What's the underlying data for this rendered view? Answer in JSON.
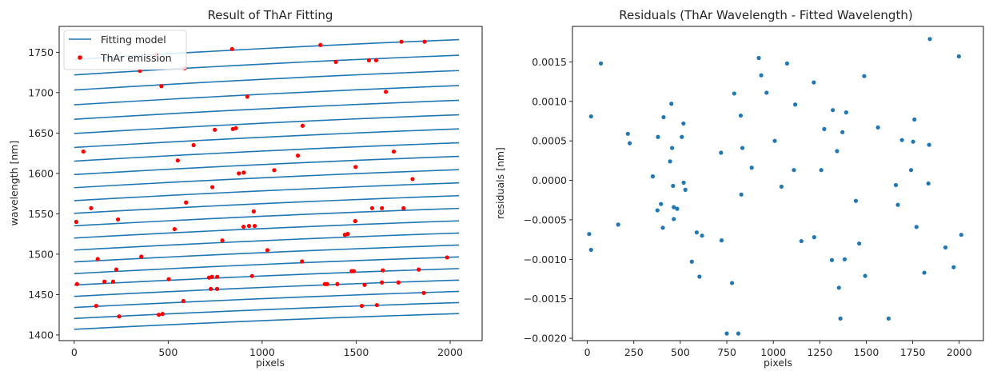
{
  "colors": {
    "model": "#1f77b4",
    "emission": "#ff0000",
    "residual": "#1f77b4"
  },
  "chart_data": [
    {
      "type": "line",
      "title": "Result of ThAr Fitting",
      "xlabel": "pixels",
      "ylabel": "wavelength [nm]",
      "xlim": [
        -80,
        2170
      ],
      "ylim": [
        1393,
        1782
      ],
      "xticks": [
        0,
        500,
        1000,
        1500,
        2000
      ],
      "xtick_labels": [
        "0",
        "500",
        "1000",
        "1500",
        "2000"
      ],
      "yticks": [
        1400,
        1450,
        1500,
        1550,
        1600,
        1650,
        1700,
        1750
      ],
      "ytick_labels": [
        "1400",
        "1450",
        "1500",
        "1550",
        "1600",
        "1650",
        "1700",
        "1750"
      ],
      "legend": {
        "position": "top-left",
        "entries": [
          "Fitting model",
          "ThAr emission"
        ]
      },
      "model_series": {
        "name": "Fitting model",
        "x_range": [
          0,
          2047
        ],
        "orders": [
          {
            "start": 1407.0,
            "end": 1426.5
          },
          {
            "start": 1420.4,
            "end": 1440.1
          },
          {
            "start": 1434.0,
            "end": 1453.9
          },
          {
            "start": 1447.8,
            "end": 1467.9
          },
          {
            "start": 1461.8,
            "end": 1482.2
          },
          {
            "start": 1476.0,
            "end": 1496.6
          },
          {
            "start": 1490.4,
            "end": 1511.3
          },
          {
            "start": 1505.1,
            "end": 1526.2
          },
          {
            "start": 1520.0,
            "end": 1541.3
          },
          {
            "start": 1535.1,
            "end": 1556.7
          },
          {
            "start": 1550.6,
            "end": 1572.4
          },
          {
            "start": 1566.3,
            "end": 1588.3
          },
          {
            "start": 1582.3,
            "end": 1604.6
          },
          {
            "start": 1598.6,
            "end": 1621.1
          },
          {
            "start": 1615.2,
            "end": 1637.9
          },
          {
            "start": 1632.1,
            "end": 1655.1
          },
          {
            "start": 1649.4,
            "end": 1672.6
          },
          {
            "start": 1667.0,
            "end": 1690.5
          },
          {
            "start": 1684.9,
            "end": 1708.7
          },
          {
            "start": 1703.2,
            "end": 1727.3
          },
          {
            "start": 1721.9,
            "end": 1746.3
          },
          {
            "start": 1741.0,
            "end": 1765.6
          }
        ]
      },
      "emission_series": {
        "name": "ThAr emission",
        "points": [
          [
            239,
            1423
          ],
          [
            450,
            1425
          ],
          [
            470,
            1426
          ],
          [
            1530,
            1436
          ],
          [
            1610,
            1437
          ],
          [
            117,
            1436
          ],
          [
            581,
            1442
          ],
          [
            1860,
            1452
          ],
          [
            727,
            1457
          ],
          [
            760,
            1457
          ],
          [
            1545,
            1462
          ],
          [
            1637,
            1465
          ],
          [
            1725,
            1465
          ],
          [
            161,
            1466
          ],
          [
            207,
            1466
          ],
          [
            503,
            1469
          ],
          [
            717,
            1471
          ],
          [
            733,
            1472
          ],
          [
            761,
            1472
          ],
          [
            946,
            1473
          ],
          [
            1334,
            1463
          ],
          [
            1346,
            1463
          ],
          [
            1400,
            1463
          ],
          [
            1476,
            1479
          ],
          [
            1487,
            1479
          ],
          [
            1642,
            1480
          ],
          [
            1833,
            1481
          ],
          [
            224,
            1481
          ],
          [
            15,
            1463
          ],
          [
            125,
            1494
          ],
          [
            357,
            1497
          ],
          [
            1212,
            1491
          ],
          [
            1984,
            1496
          ],
          [
            1028,
            1505
          ],
          [
            788,
            1517
          ],
          [
            1440,
            1524
          ],
          [
            1455,
            1525
          ],
          [
            233,
            1543
          ],
          [
            534,
            1531
          ],
          [
            901,
            1534
          ],
          [
            930,
            1535
          ],
          [
            960,
            1535
          ],
          [
            1495,
            1541
          ],
          [
            11,
            1540
          ],
          [
            90,
            1557
          ],
          [
            595,
            1564
          ],
          [
            955,
            1553
          ],
          [
            1585,
            1557
          ],
          [
            1637,
            1557
          ],
          [
            1752,
            1557
          ],
          [
            735,
            1583
          ],
          [
            1800,
            1593
          ],
          [
            1064,
            1604
          ],
          [
            1497,
            1608
          ],
          [
            551,
            1616
          ],
          [
            876,
            1600
          ],
          [
            902,
            1601
          ],
          [
            1190,
            1622
          ],
          [
            49,
            1627
          ],
          [
            1700,
            1627
          ],
          [
            635,
            1635
          ],
          [
            748,
            1654
          ],
          [
            844,
            1655
          ],
          [
            860,
            1656
          ],
          [
            1215,
            1659
          ],
          [
            921,
            1695
          ],
          [
            1658,
            1701
          ],
          [
            464,
            1708
          ],
          [
            587,
            1730
          ],
          [
            350,
            1727
          ],
          [
            1392,
            1738
          ],
          [
            1568,
            1740
          ],
          [
            1606,
            1740
          ],
          [
            840,
            1754
          ],
          [
            1310,
            1759
          ],
          [
            1741,
            1763
          ],
          [
            1864,
            1763
          ],
          [
            437,
            1747
          ]
        ]
      }
    },
    {
      "type": "scatter",
      "title": "Residuals (ThAr Wavelength - Fitted Wavelength)",
      "xlabel": "pixels",
      "ylabel": "residuals [nm]",
      "xlim": [
        -80,
        2130
      ],
      "ylim": [
        -0.00203,
        0.00195
      ],
      "xticks": [
        0,
        250,
        500,
        750,
        1000,
        1250,
        1500,
        1750,
        2000
      ],
      "xtick_labels": [
        "0",
        "250",
        "500",
        "750",
        "1000",
        "1250",
        "1500",
        "1750",
        "2000"
      ],
      "yticks": [
        -0.002,
        -0.0015,
        -0.001,
        -0.0005,
        0.0,
        0.0005,
        0.001,
        0.0015
      ],
      "ytick_labels": [
        "−0.0020",
        "−0.0015",
        "−0.0010",
        "−0.0005",
        "0.0000",
        "0.0005",
        "0.0010",
        "0.0015"
      ],
      "series": {
        "name": "residuals",
        "points": [
          [
            10,
            -0.00068
          ],
          [
            20,
            0.00081
          ],
          [
            20,
            -0.00088
          ],
          [
            73,
            0.00148
          ],
          [
            166,
            -0.00056
          ],
          [
            218,
            0.00059
          ],
          [
            228,
            0.00047
          ],
          [
            352,
            5e-05
          ],
          [
            377,
            -0.00038
          ],
          [
            380,
            0.00055
          ],
          [
            396,
            -0.0003
          ],
          [
            406,
            -0.0006
          ],
          [
            410,
            0.0008
          ],
          [
            445,
            0.00024
          ],
          [
            452,
            0.00097
          ],
          [
            456,
            0.00041
          ],
          [
            461,
            -7e-05
          ],
          [
            465,
            -0.00034
          ],
          [
            465,
            -0.00049
          ],
          [
            483,
            -0.00036
          ],
          [
            508,
            0.00055
          ],
          [
            517,
            0.00072
          ],
          [
            518,
            -3e-05
          ],
          [
            527,
            -0.00012
          ],
          [
            562,
            -0.00103
          ],
          [
            588,
            -0.00066
          ],
          [
            603,
            -0.00122
          ],
          [
            617,
            -0.0007
          ],
          [
            719,
            0.00035
          ],
          [
            722,
            -0.00076
          ],
          [
            750,
            -0.00194
          ],
          [
            778,
            -0.0013
          ],
          [
            790,
            0.0011
          ],
          [
            812,
            -0.00194
          ],
          [
            825,
            0.00082
          ],
          [
            828,
            -0.00018
          ],
          [
            834,
            0.00041
          ],
          [
            884,
            0.00016
          ],
          [
            922,
            0.00155
          ],
          [
            935,
            0.00133
          ],
          [
            964,
            0.00111
          ],
          [
            1008,
            0.0005
          ],
          [
            1044,
            -8e-05
          ],
          [
            1074,
            0.00148
          ],
          [
            1111,
            0.00013
          ],
          [
            1118,
            0.00096
          ],
          [
            1151,
            -0.00077
          ],
          [
            1218,
            0.00124
          ],
          [
            1220,
            -0.00072
          ],
          [
            1258,
            0.00013
          ],
          [
            1274,
            0.00065
          ],
          [
            1315,
            -0.00101
          ],
          [
            1320,
            0.00089
          ],
          [
            1343,
            0.00037
          ],
          [
            1353,
            -0.00136
          ],
          [
            1361,
            -0.00175
          ],
          [
            1372,
            0.00061
          ],
          [
            1384,
            -0.001
          ],
          [
            1392,
            0.00086
          ],
          [
            1444,
            -0.00026
          ],
          [
            1462,
            -0.0008
          ],
          [
            1489,
            0.00132
          ],
          [
            1494,
            -0.00121
          ],
          [
            1563,
            0.00067
          ],
          [
            1620,
            -0.00175
          ],
          [
            1659,
            -6e-05
          ],
          [
            1670,
            -0.00031
          ],
          [
            1692,
            0.00051
          ],
          [
            1741,
            0.00013
          ],
          [
            1752,
            0.00049
          ],
          [
            1759,
            0.00077
          ],
          [
            1770,
            -0.00059
          ],
          [
            1812,
            -0.00117
          ],
          [
            1834,
            -4e-05
          ],
          [
            1838,
            0.00045
          ],
          [
            1842,
            0.00179
          ],
          [
            1926,
            -0.00085
          ],
          [
            1970,
            -0.0011
          ],
          [
            1998,
            0.00157
          ],
          [
            2011,
            -0.00069
          ]
        ]
      }
    }
  ]
}
